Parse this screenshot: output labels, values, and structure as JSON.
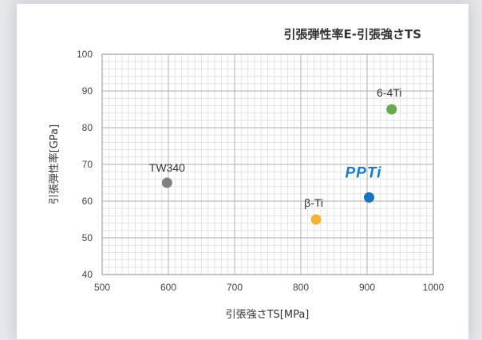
{
  "chart_data": {
    "type": "scatter",
    "title": "引張弾性率E-引張強さTS",
    "xlabel": "引張強さTS[MPa]",
    "ylabel": "引張弾性率[GPa]",
    "xlim": [
      500,
      1000
    ],
    "ylim": [
      40,
      100
    ],
    "x_ticks": [
      "500",
      "600",
      "700",
      "800",
      "900",
      "1000"
    ],
    "y_ticks": [
      "40",
      "50",
      "60",
      "70",
      "80",
      "90",
      "100"
    ],
    "grid": true,
    "points": [
      {
        "label": "TW340",
        "x": 598,
        "y": 65,
        "color": "#808080"
      },
      {
        "label": "β-Ti",
        "x": 823,
        "y": 55,
        "color": "#f1b434"
      },
      {
        "label": "PPTi",
        "x": 903,
        "y": 61,
        "color": "#1a73c0",
        "label_style": "logo"
      },
      {
        "label": "6-4Ti",
        "x": 937,
        "y": 85,
        "color": "#6aa84f"
      }
    ]
  }
}
